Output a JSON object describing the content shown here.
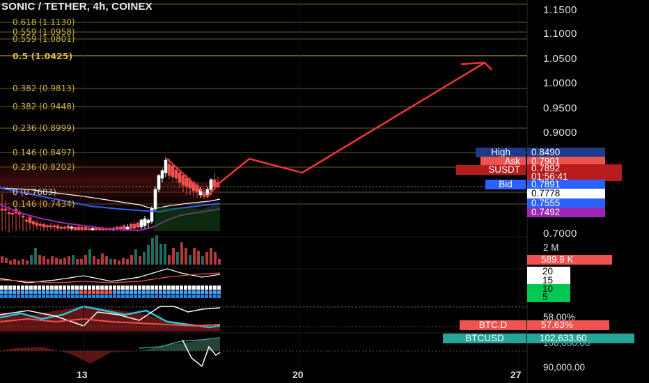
{
  "header": {
    "title": "SONIC / TETHER, 4h, COINEX"
  },
  "fib_levels": [
    {
      "text": "0.618 (1.1130)",
      "price": 1.113
    },
    {
      "text": "0.559 (1.0958)",
      "price": 1.0958
    },
    {
      "text": "0.559 (1.0801)",
      "price": 1.0801
    },
    {
      "text": "0.5 (1.0425)",
      "price": 1.0425
    },
    {
      "text": "0.382 (0.9813)",
      "price": 0.9813
    },
    {
      "text": "0.382 (0.9448)",
      "price": 0.9448
    },
    {
      "text": "0.236 (0.8999)",
      "price": 0.8999
    },
    {
      "text": "0.146 (0.8497)",
      "price": 0.8497
    },
    {
      "text": "0.236 (0.8202)",
      "price": 0.8202
    },
    {
      "text": "0 (0.7683)",
      "price": 0.7683
    },
    {
      "text": "0.146 (0.7434)",
      "price": 0.7434
    }
  ],
  "price_axis": [
    "1.1500",
    "1.1000",
    "1.0500",
    "1.0000",
    "0.9500",
    "0.9000",
    "0.7000"
  ],
  "time_axis": [
    "13",
    "20",
    "27"
  ],
  "price_tags": {
    "high_label": "High",
    "high_value": "0.8490",
    "ask_label": "Ask",
    "ask_value": "0.7901",
    "symbol_label": "SUSDT",
    "symbol_value": "0.7892",
    "countdown": "01:56:41",
    "bid_label": "Bid",
    "bid_value": "0.7891",
    "ma_white": "0.7778",
    "ma_blue": "0.7555",
    "ma_purple": "0.7492"
  },
  "volume": {
    "axis": "2 M",
    "value": "589.9 K"
  },
  "oscillator": {
    "levels": [
      "20",
      "15",
      "10",
      "5"
    ]
  },
  "dominance": {
    "axis": "58.00%",
    "label": "BTC.D",
    "value": "57.63%"
  },
  "btcusd": {
    "label": "BTCUSD",
    "value": "102,633.60",
    "axis_upper": "100,000.00",
    "axis_lower": "90,000.00"
  },
  "colors": {
    "up": "#26a69a",
    "down": "#ef5350",
    "fib": "#b8a038",
    "projection": "#f0363d",
    "high_tag": "#1e3a8a",
    "ask_tag": "#ef5350",
    "symbol_tag": "#b71c1c",
    "bid_tag": "#2962ff",
    "ma_blue": "#2962ff",
    "ma_purple": "#9c27b0",
    "osc_green": "#00c853"
  }
}
